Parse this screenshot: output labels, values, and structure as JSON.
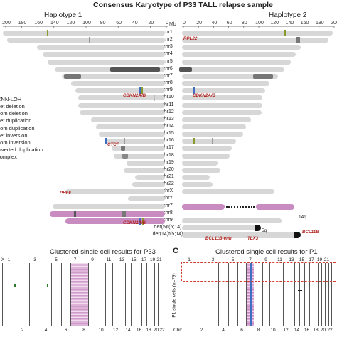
{
  "title": "Consensus Karyotype of P33 TALL relapse sample",
  "haplotype1": "Haplotype 1",
  "haplotype2": "Haplotype 2",
  "mb_label": "Mb",
  "left_ticks": [
    "200",
    "180",
    "160",
    "140",
    "120",
    "100",
    "80",
    "60",
    "40",
    "20",
    "0"
  ],
  "right_ticks": [
    "0",
    "20",
    "40",
    "60",
    "80",
    "100",
    "120",
    "140",
    "160",
    "180",
    "200"
  ],
  "chromosomes": [
    "chr1",
    "chr2",
    "chr3",
    "chr4",
    "chr5",
    "chr6",
    "chr7",
    "chr8",
    "chr9",
    "chr10",
    "chr11",
    "chr12",
    "chr13",
    "chr14",
    "chr15",
    "chr16",
    "chr17",
    "chr18",
    "chr19",
    "chr20",
    "chr21",
    "chr22",
    "chrX",
    "chrY",
    "chr7",
    "chr8",
    "chr9",
    "der(5)t(5;14)",
    "der(14)t(5;14)"
  ],
  "legend": [
    "CNN-LOH",
    "het deletion",
    "hom deletion",
    "het duplication",
    "hom duplication",
    "het inversion",
    "hom inversion",
    "inverted duplication",
    "complex"
  ],
  "genes": {
    "rpl22": "RPL22",
    "cdkn2ab_1": "CDKN2A/B",
    "cdkn2ab_2": "CDKN2A/B",
    "ctcf": "CTCF",
    "phf6": "PHF6",
    "cdkn2ab_3": "CDKN2A/B",
    "tlx3": "TLX3",
    "bcl11b_enh": "BCL11B-enh",
    "bcl11b": "BCL11B"
  },
  "arm_labels": {
    "q14": "14q",
    "q5": "5q"
  },
  "panel_b_title": "Clustered single cell results for P33",
  "panel_c_label": "C",
  "panel_c_title": "Clustered single cell results for P1",
  "panel_c_ylabel": "P1 single cells (n=79)",
  "chr_axis_label": "Chr:",
  "panel_b_top_ticks": [
    "1",
    "3",
    "5",
    "7",
    "9",
    "11",
    "13",
    "15",
    "17",
    "19",
    "21",
    "X"
  ],
  "panel_b_bottom_ticks": [
    "2",
    "4",
    "6",
    "8",
    "10",
    "12",
    "14",
    "16",
    "18",
    "20",
    "22"
  ],
  "panel_c_top_ticks": [
    "1",
    "3",
    "5",
    "7",
    "9",
    "11",
    "13",
    "15",
    "17",
    "19",
    "21"
  ],
  "panel_c_bottom_ticks": [
    "2",
    "4",
    "6",
    "8",
    "10",
    "12",
    "14",
    "16",
    "18",
    "20",
    "22"
  ],
  "colors": {
    "chromosome": "#d7d7d7",
    "translocated": "#c88cc0",
    "gene_label": "#b0201c",
    "blue_mark": "#3f6fc4",
    "olive_mark": "#8a9a2a",
    "dark_block": "#777777",
    "red_dashed": "#d33b2e"
  }
}
